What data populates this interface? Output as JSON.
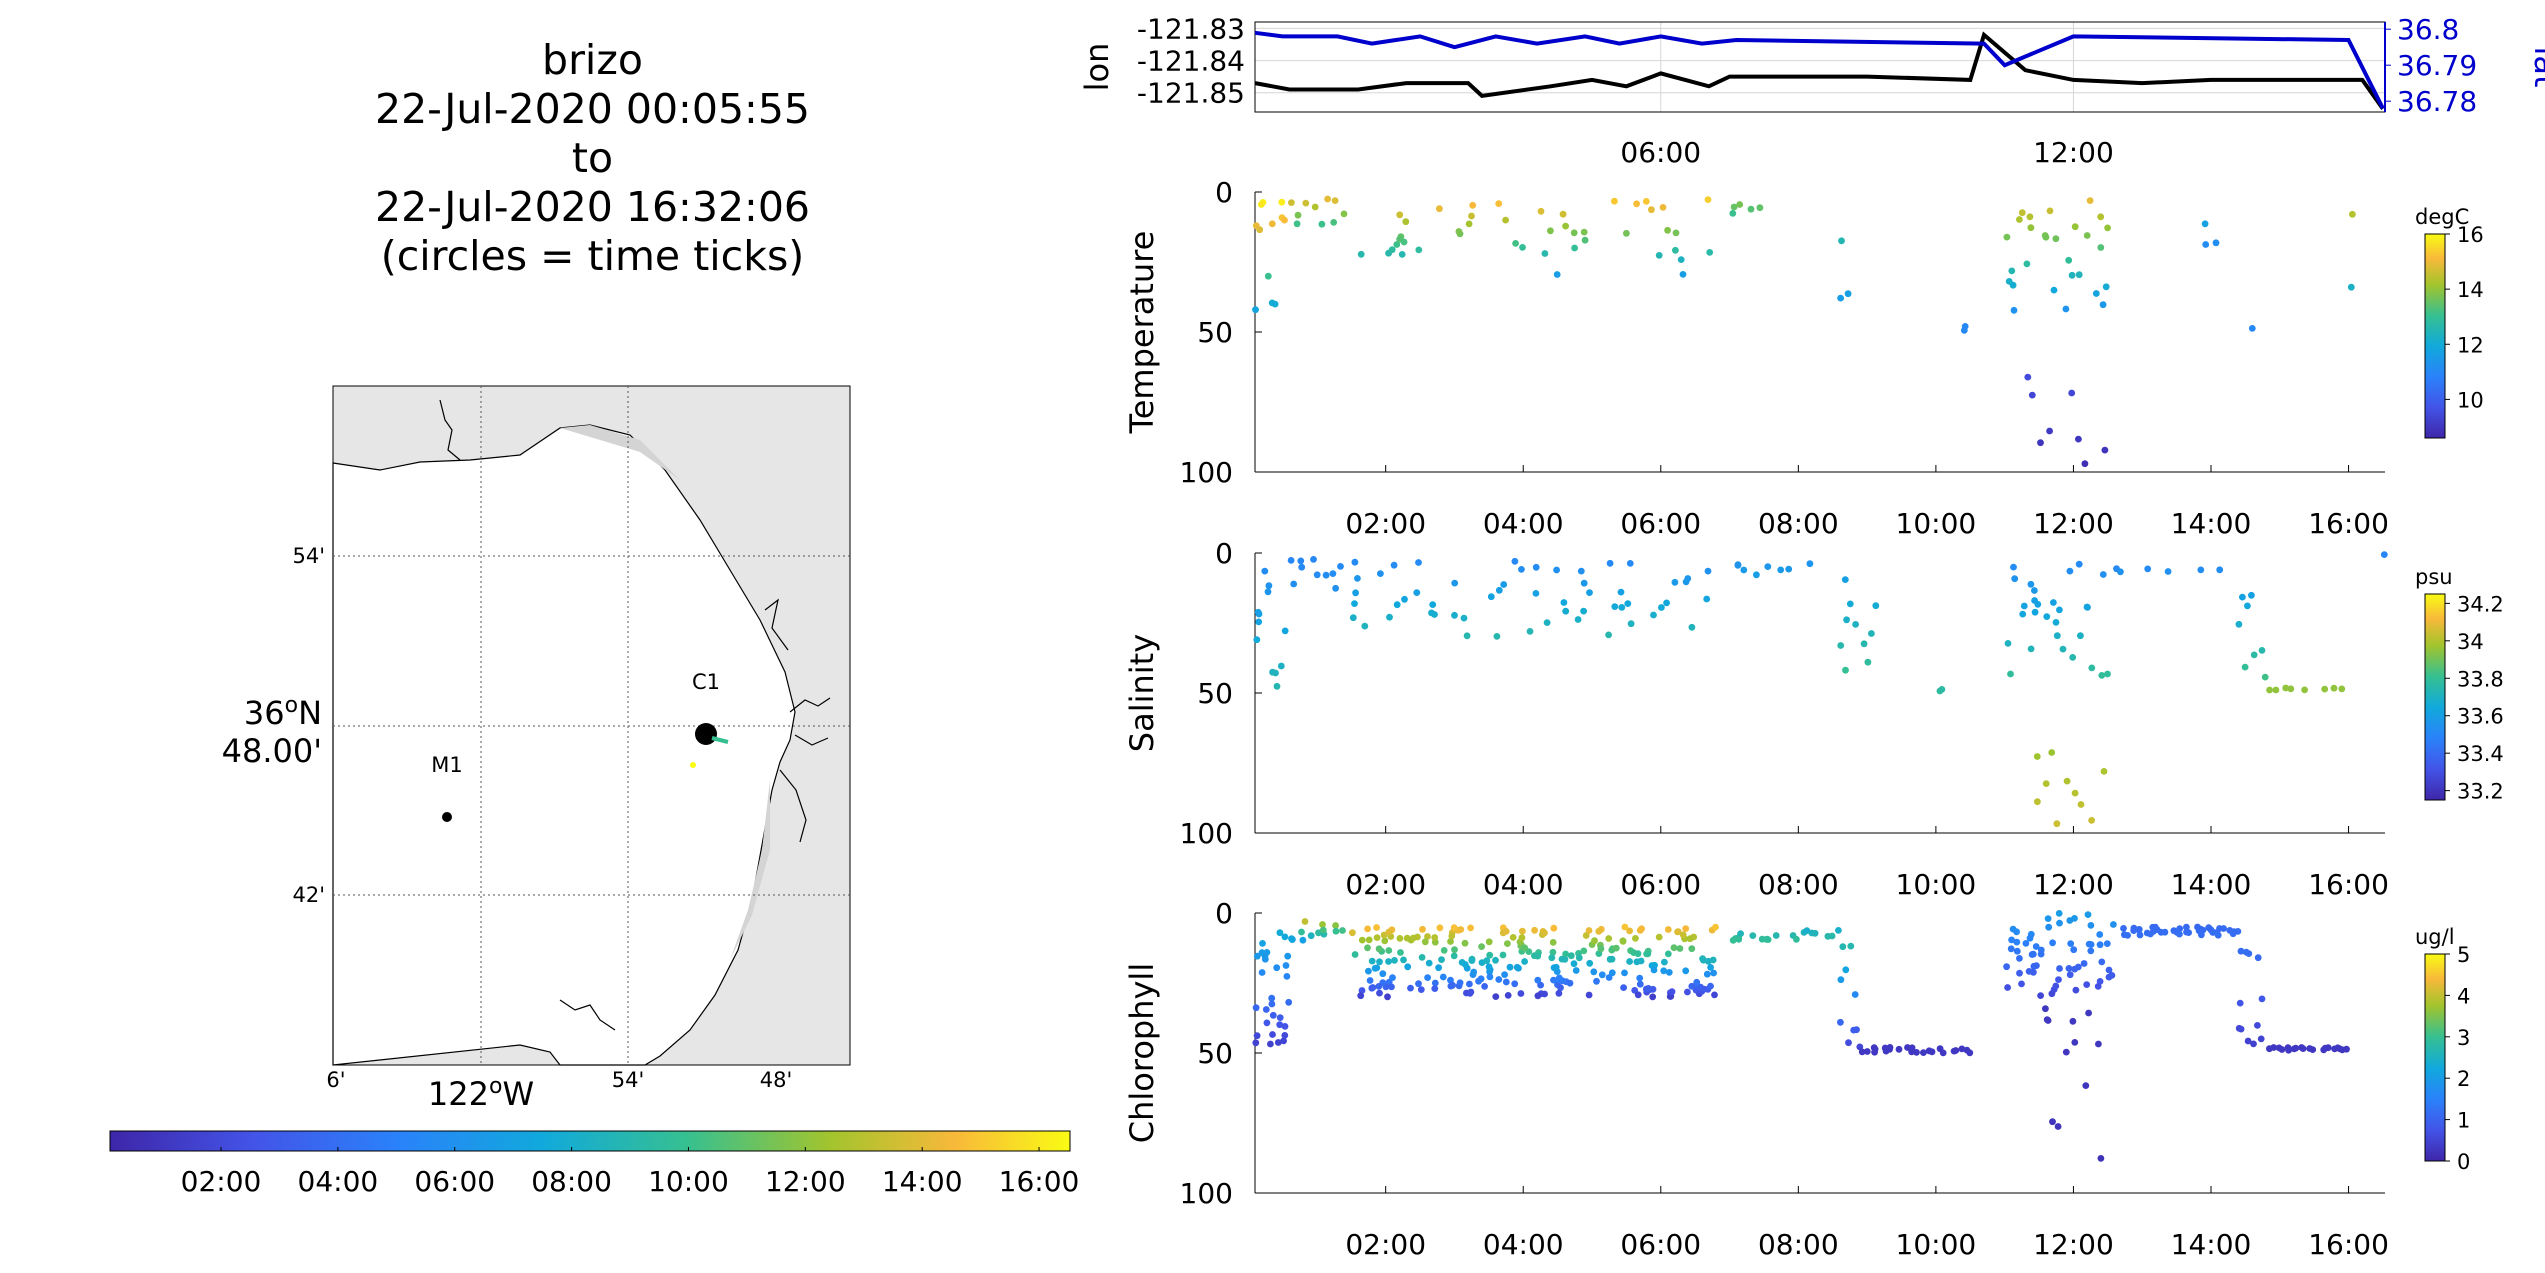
{
  "title_lines": [
    "brizo",
    "22-Jul-2020 00:05:55",
    "to",
    "22-Jul-2020 16:32:06",
    "(circles = time ticks)"
  ],
  "map": {
    "lat_ticks": [
      "54'",
      "42'"
    ],
    "lat_center": [
      "36",
      "o",
      "N"
    ],
    "lat_center_min": "48.00'",
    "lon_ticks": [
      "6'",
      "54'",
      "48'"
    ],
    "lon_center": [
      "122",
      "o",
      "W"
    ],
    "stations": [
      {
        "label": "C1",
        "lon": -121.83,
        "lat": 36.8
      },
      {
        "label": "M1",
        "lon": -122.03,
        "lat": 36.75
      }
    ],
    "land_color": "#e6e6e6"
  },
  "time_colorbar": {
    "ticks": [
      "02:00",
      "04:00",
      "06:00",
      "08:00",
      "10:00",
      "12:00",
      "14:00",
      "16:00"
    ],
    "range_hours": [
      0.1,
      16.53
    ]
  },
  "chart_data": [
    {
      "type": "line",
      "title": "",
      "xlabel": "",
      "x_ticks": [
        "06:00",
        "12:00"
      ],
      "xlim_hours": [
        0.1,
        16.53
      ],
      "y_left": {
        "label": "lon",
        "ticks": [
          "-121.83",
          "-121.84",
          "-121.85"
        ],
        "ylim": [
          -121.856,
          -121.828
        ]
      },
      "y_right": {
        "label": "lat",
        "ticks": [
          "36.8",
          "36.79",
          "36.78"
        ],
        "ylim": [
          36.777,
          36.802
        ],
        "color": "#0000cc"
      },
      "grid": true,
      "series": [
        {
          "axis": "left",
          "color": "#000000",
          "x": [
            0.1,
            0.6,
            1.6,
            2.3,
            3.2,
            3.4,
            4.4,
            5.0,
            5.5,
            6.0,
            6.7,
            7.0,
            8.0,
            9.0,
            10.5,
            10.7,
            11.3,
            12.0,
            13.0,
            14.0,
            15.5,
            16.2,
            16.5
          ],
          "y": [
            -121.847,
            -121.849,
            -121.849,
            -121.847,
            -121.847,
            -121.851,
            -121.848,
            -121.846,
            -121.848,
            -121.844,
            -121.848,
            -121.845,
            -121.845,
            -121.845,
            -121.846,
            -121.832,
            -121.843,
            -121.846,
            -121.847,
            -121.846,
            -121.846,
            -121.846,
            -121.855
          ]
        },
        {
          "axis": "right",
          "color": "#0000cc",
          "x": [
            0.1,
            0.5,
            1.3,
            1.8,
            2.5,
            3.0,
            3.6,
            4.2,
            4.9,
            5.4,
            6.0,
            6.6,
            7.1,
            10.7,
            11.0,
            12.0,
            16.0,
            16.5
          ],
          "y": [
            36.799,
            36.798,
            36.798,
            36.796,
            36.798,
            36.795,
            36.798,
            36.796,
            36.798,
            36.796,
            36.798,
            36.796,
            36.797,
            36.796,
            36.79,
            36.798,
            36.797,
            36.778
          ]
        }
      ]
    },
    {
      "type": "scatter",
      "ylabel": "Temperature",
      "y_ticks": [
        "0",
        "50",
        "100"
      ],
      "ylim": [
        0,
        100
      ],
      "y_reversed": true,
      "x_ticks": [
        "02:00",
        "04:00",
        "06:00",
        "08:00",
        "10:00",
        "12:00",
        "14:00",
        "16:00"
      ],
      "xlim_hours": [
        0.1,
        16.53
      ],
      "colorbar": {
        "unit": "degC",
        "ticks": [
          "16",
          "14",
          "12",
          "10"
        ],
        "range": [
          8.6,
          16.0
        ]
      },
      "clusters": [
        {
          "x": [
            0.1,
            0.6
          ],
          "y": [
            2,
            50
          ],
          "v": [
            16,
            11
          ],
          "n": 12
        },
        {
          "x": [
            0.6,
            1.4
          ],
          "y": [
            2,
            12
          ],
          "v": [
            15,
            13
          ],
          "n": 10
        },
        {
          "x": [
            1.5,
            6.8
          ],
          "y": [
            2,
            30
          ],
          "v": [
            15.5,
            11.5
          ],
          "n": 45
        },
        {
          "x": [
            7.0,
            7.5
          ],
          "y": [
            3,
            8
          ],
          "v": [
            14,
            13
          ],
          "n": 5
        },
        {
          "x": [
            8.6,
            8.8
          ],
          "y": [
            8,
            50
          ],
          "v": [
            13,
            11
          ],
          "n": 3
        },
        {
          "x": [
            10.4,
            10.6
          ],
          "y": [
            48,
            50
          ],
          "v": [
            11,
            11
          ],
          "n": 2
        },
        {
          "x": [
            11.0,
            12.6
          ],
          "y": [
            2,
            45
          ],
          "v": [
            15,
            11
          ],
          "n": 28
        },
        {
          "x": [
            11.3,
            12.5
          ],
          "y": [
            66,
            98
          ],
          "v": [
            9.5,
            8.8
          ],
          "n": 8
        },
        {
          "x": [
            13.9,
            14.2
          ],
          "y": [
            8,
            20
          ],
          "v": [
            12,
            11
          ],
          "n": 3
        },
        {
          "x": [
            14.5,
            14.7
          ],
          "y": [
            48,
            50
          ],
          "v": [
            11,
            11
          ],
          "n": 1
        },
        {
          "x": [
            16.0,
            16.5
          ],
          "y": [
            0,
            50
          ],
          "v": [
            15,
            11
          ],
          "n": 2
        }
      ]
    },
    {
      "type": "scatter",
      "ylabel": "Salinity",
      "y_ticks": [
        "0",
        "50",
        "100"
      ],
      "ylim": [
        0,
        100
      ],
      "y_reversed": true,
      "x_ticks": [
        "02:00",
        "04:00",
        "06:00",
        "08:00",
        "10:00",
        "12:00",
        "14:00",
        "16:00"
      ],
      "xlim_hours": [
        0.1,
        16.53
      ],
      "colorbar": {
        "unit": "psu",
        "ticks": [
          "34.2",
          "34",
          "33.8",
          "33.6",
          "33.4",
          "33.2"
        ],
        "range": [
          33.15,
          34.25
        ]
      },
      "clusters": [
        {
          "x": [
            0.1,
            0.6
          ],
          "y": [
            2,
            50
          ],
          "v": [
            33.5,
            33.75
          ],
          "n": 12
        },
        {
          "x": [
            0.6,
            1.4
          ],
          "y": [
            2,
            15
          ],
          "v": [
            33.5,
            33.55
          ],
          "n": 10
        },
        {
          "x": [
            1.5,
            6.8
          ],
          "y": [
            2,
            30
          ],
          "v": [
            33.5,
            33.75
          ],
          "n": 55
        },
        {
          "x": [
            7.0,
            8.2
          ],
          "y": [
            3,
            8
          ],
          "v": [
            33.55,
            33.6
          ],
          "n": 8
        },
        {
          "x": [
            8.6,
            9.2
          ],
          "y": [
            8,
            50
          ],
          "v": [
            33.6,
            33.85
          ],
          "n": 10
        },
        {
          "x": [
            10.0,
            10.6
          ],
          "y": [
            48,
            50
          ],
          "v": [
            33.75,
            33.8
          ],
          "n": 2
        },
        {
          "x": [
            11.0,
            12.6
          ],
          "y": [
            2,
            45
          ],
          "v": [
            33.5,
            33.8
          ],
          "n": 28
        },
        {
          "x": [
            11.3,
            12.5
          ],
          "y": [
            66,
            98
          ],
          "v": [
            33.95,
            34.05
          ],
          "n": 10
        },
        {
          "x": [
            12.6,
            14.4
          ],
          "y": [
            5,
            7
          ],
          "v": [
            33.5,
            33.55
          ],
          "n": 6
        },
        {
          "x": [
            14.4,
            14.8
          ],
          "y": [
            7,
            48
          ],
          "v": [
            33.55,
            33.85
          ],
          "n": 8
        },
        {
          "x": [
            14.8,
            16.0
          ],
          "y": [
            48,
            49
          ],
          "v": [
            33.95,
            33.95
          ],
          "n": 8
        },
        {
          "x": [
            16.5,
            16.53
          ],
          "y": [
            0,
            1
          ],
          "v": [
            33.5,
            33.5
          ],
          "n": 1
        }
      ]
    },
    {
      "type": "scatter",
      "ylabel": "Chlorophyll",
      "y_ticks": [
        "0",
        "50",
        "100"
      ],
      "ylim": [
        0,
        100
      ],
      "y_reversed": true,
      "x_ticks": [
        "02:00",
        "04:00",
        "06:00",
        "08:00",
        "10:00",
        "12:00",
        "14:00",
        "16:00"
      ],
      "xlim_hours": [
        0.1,
        16.53
      ],
      "colorbar": {
        "unit": "ug/l",
        "ticks": [
          "5",
          "4",
          "3",
          "2",
          "1",
          "0"
        ],
        "range": [
          0,
          5
        ]
      },
      "clusters": [
        {
          "x": [
            0.1,
            0.6
          ],
          "y": [
            3,
            50
          ],
          "v": [
            2.5,
            0.3
          ],
          "n": 30
        },
        {
          "x": [
            0.6,
            1.4
          ],
          "y": [
            3,
            10
          ],
          "v": [
            4.0,
            2.0
          ],
          "n": 14
        },
        {
          "x": [
            1.5,
            6.8
          ],
          "y": [
            5,
            30
          ],
          "v": [
            4.5,
            0.4
          ],
          "n": 260
        },
        {
          "x": [
            6.9,
            8.6
          ],
          "y": [
            6,
            10
          ],
          "v": [
            2.4,
            3.0
          ],
          "n": 20
        },
        {
          "x": [
            8.6,
            8.9
          ],
          "y": [
            10,
            50
          ],
          "v": [
            2.8,
            0.4
          ],
          "n": 10
        },
        {
          "x": [
            8.9,
            10.5
          ],
          "y": [
            50,
            48
          ],
          "v": [
            0.3,
            0.3
          ],
          "n": 24
        },
        {
          "x": [
            11.0,
            12.6
          ],
          "y": [
            0,
            30
          ],
          "v": [
            2.0,
            0.5
          ],
          "n": 60
        },
        {
          "x": [
            11.5,
            12.4
          ],
          "y": [
            30,
            90
          ],
          "v": [
            0.3,
            0.2
          ],
          "n": 12
        },
        {
          "x": [
            12.7,
            14.4
          ],
          "y": [
            5,
            8
          ],
          "v": [
            1.1,
            1.2
          ],
          "n": 40
        },
        {
          "x": [
            14.4,
            14.8
          ],
          "y": [
            8,
            49
          ],
          "v": [
            1.3,
            0.4
          ],
          "n": 12
        },
        {
          "x": [
            14.8,
            16.0
          ],
          "y": [
            49,
            48
          ],
          "v": [
            0.3,
            0.3
          ],
          "n": 20
        }
      ]
    }
  ]
}
